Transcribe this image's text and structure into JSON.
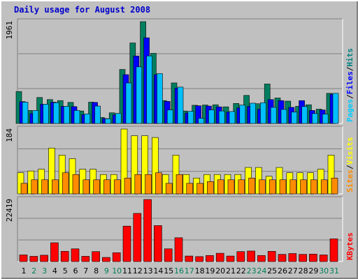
{
  "chart_data": [
    {
      "type": "bar",
      "title": "Daily usage for August 2008",
      "ylim": [
        0,
        1961
      ],
      "y_max_label": "1961",
      "side_label_parts": [
        {
          "text": "Pages",
          "color": "#00ccff"
        },
        {
          "text": "/",
          "color": "#000000"
        },
        {
          "text": "Files",
          "color": "#0000ff"
        },
        {
          "text": "/",
          "color": "#000000"
        },
        {
          "text": "Hits",
          "color": "#008080"
        }
      ],
      "categories": [
        "1",
        "2",
        "3",
        "4",
        "5",
        "6",
        "7",
        "8",
        "9",
        "10",
        "11",
        "12",
        "13",
        "14",
        "15",
        "16",
        "17",
        "18",
        "19",
        "20",
        "21",
        "22",
        "23",
        "24",
        "25",
        "26",
        "27",
        "28",
        "29",
        "30",
        "31"
      ],
      "weekend_days": [
        "2",
        "3",
        "9",
        "10",
        "16",
        "17",
        "23",
        "24",
        "30",
        "31"
      ],
      "series": [
        {
          "name": "Hits",
          "color": "#007f60",
          "values": [
            615,
            250,
            500,
            460,
            440,
            405,
            240,
            410,
            115,
            205,
            1040,
            1550,
            1961,
            1350,
            440,
            780,
            240,
            350,
            355,
            360,
            320,
            385,
            540,
            380,
            760,
            490,
            430,
            330,
            360,
            275,
            580
          ]
        },
        {
          "name": "Files",
          "color": "#0000ff",
          "values": [
            420,
            190,
            370,
            410,
            330,
            325,
            170,
            405,
            95,
            165,
            940,
            1300,
            1650,
            940,
            425,
            680,
            200,
            340,
            335,
            320,
            220,
            300,
            330,
            275,
            460,
            440,
            310,
            440,
            250,
            260,
            560
          ]
        },
        {
          "name": "Pages",
          "color": "#00bfff",
          "values": [
            410,
            250,
            370,
            400,
            330,
            250,
            185,
            335,
            90,
            195,
            780,
            1090,
            1300,
            960,
            260,
            700,
            235,
            100,
            260,
            240,
            230,
            355,
            390,
            400,
            310,
            270,
            220,
            325,
            190,
            180,
            580
          ]
        }
      ]
    },
    {
      "type": "bar",
      "ylim": [
        0,
        184
      ],
      "y_max_label": "184",
      "side_label_parts": [
        {
          "text": "Sites",
          "color": "#ff8c00"
        },
        {
          "text": "/",
          "color": "#000000"
        },
        {
          "text": "Visits",
          "color": "#ffff00"
        }
      ],
      "categories": [
        "1",
        "2",
        "3",
        "4",
        "5",
        "6",
        "7",
        "8",
        "9",
        "10",
        "11",
        "12",
        "13",
        "14",
        "15",
        "16",
        "17",
        "18",
        "19",
        "20",
        "21",
        "22",
        "23",
        "24",
        "25",
        "26",
        "27",
        "28",
        "29",
        "30",
        "31"
      ],
      "series": [
        {
          "name": "Visits",
          "color": "#ffff00",
          "values": [
            60,
            65,
            70,
            130,
            110,
            100,
            70,
            70,
            55,
            55,
            184,
            165,
            165,
            160,
            55,
            110,
            55,
            45,
            55,
            55,
            55,
            55,
            75,
            75,
            50,
            75,
            60,
            60,
            60,
            70,
            110
          ]
        },
        {
          "name": "Sites",
          "color": "#ff8c00",
          "values": [
            30,
            40,
            40,
            40,
            60,
            55,
            40,
            40,
            40,
            40,
            45,
            55,
            55,
            60,
            30,
            55,
            30,
            30,
            35,
            40,
            40,
            40,
            45,
            40,
            40,
            40,
            40,
            40,
            40,
            40,
            45
          ]
        }
      ]
    },
    {
      "type": "bar",
      "ylim": [
        0,
        22419
      ],
      "y_max_label": "22419",
      "side_label_parts": [
        {
          "text": "KBytes",
          "color": "#ff0000"
        }
      ],
      "categories": [
        "1",
        "2",
        "3",
        "4",
        "5",
        "6",
        "7",
        "8",
        "9",
        "10",
        "11",
        "12",
        "13",
        "14",
        "15",
        "16",
        "17",
        "18",
        "19",
        "20",
        "21",
        "22",
        "23",
        "24",
        "25",
        "26",
        "27",
        "28",
        "29",
        "30",
        "31"
      ],
      "series": [
        {
          "name": "KBytes",
          "color": "#ff0000",
          "values": [
            2400,
            1900,
            2300,
            6800,
            3700,
            4600,
            1900,
            3600,
            1500,
            3200,
            12800,
            17400,
            22419,
            13000,
            4600,
            8600,
            2000,
            1800,
            2200,
            3000,
            2000,
            3600,
            3800,
            2200,
            3700,
            2600,
            2900,
            2600,
            2700,
            2400,
            8200
          ]
        }
      ]
    }
  ]
}
